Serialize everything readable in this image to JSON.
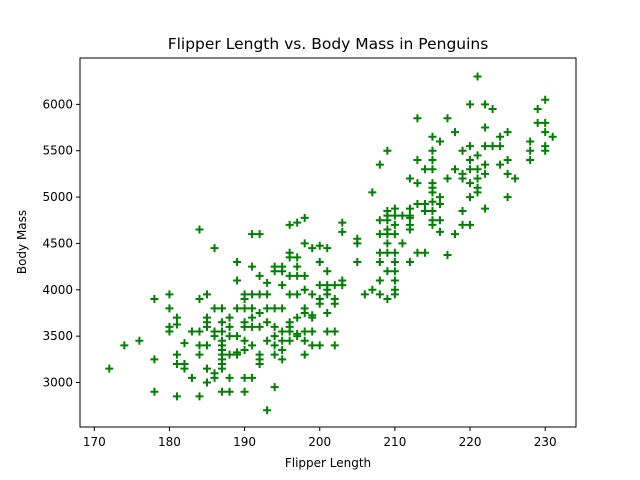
{
  "chart_data": {
    "type": "scatter",
    "title": "Flipper Length vs. Body Mass in Penguins",
    "xlabel": "Flipper Length",
    "ylabel": "Body Mass",
    "xlim": [
      168.1,
      234.1
    ],
    "ylim": [
      2520,
      6500
    ],
    "xticks": [
      170,
      180,
      190,
      200,
      210,
      220,
      230
    ],
    "yticks": [
      3000,
      3500,
      4000,
      4500,
      5000,
      5500,
      6000
    ],
    "grid": false,
    "legend": "none",
    "marker": "plus",
    "color": "#008000",
    "series": [
      {
        "points": [
          [
            172,
            3150
          ],
          [
            174,
            3400
          ],
          [
            176,
            3450
          ],
          [
            178,
            3900
          ],
          [
            178,
            3250
          ],
          [
            178,
            2900
          ],
          [
            180,
            3950
          ],
          [
            180,
            3800
          ],
          [
            180,
            3600
          ],
          [
            180,
            3550
          ],
          [
            181,
            3625
          ],
          [
            181,
            3700
          ],
          [
            181,
            3300
          ],
          [
            181,
            3200
          ],
          [
            181,
            2850
          ],
          [
            182,
            3200
          ],
          [
            182,
            3150
          ],
          [
            182,
            3425
          ],
          [
            183,
            3550
          ],
          [
            183,
            3050
          ],
          [
            184,
            4650
          ],
          [
            184,
            3900
          ],
          [
            184,
            3550
          ],
          [
            184,
            3400
          ],
          [
            184,
            3300
          ],
          [
            184,
            2850
          ],
          [
            185,
            3950
          ],
          [
            185,
            3700
          ],
          [
            185,
            3650
          ],
          [
            185,
            3600
          ],
          [
            185,
            3400
          ],
          [
            185,
            3150
          ],
          [
            185,
            3000
          ],
          [
            186,
            4450
          ],
          [
            186,
            3800
          ],
          [
            186,
            3550
          ],
          [
            186,
            3500
          ],
          [
            186,
            3100
          ],
          [
            186,
            3050
          ],
          [
            187,
            3800
          ],
          [
            187,
            3650
          ],
          [
            187,
            3550
          ],
          [
            187,
            3450
          ],
          [
            187,
            3400
          ],
          [
            187,
            3350
          ],
          [
            187,
            3300
          ],
          [
            187,
            3250
          ],
          [
            187,
            3200
          ],
          [
            187,
            3150
          ],
          [
            187,
            2900
          ],
          [
            188,
            3700
          ],
          [
            188,
            3600
          ],
          [
            188,
            3500
          ],
          [
            188,
            3300
          ],
          [
            188,
            3050
          ],
          [
            188,
            2900
          ],
          [
            189,
            4300
          ],
          [
            189,
            4100
          ],
          [
            189,
            3800
          ],
          [
            189,
            3500
          ],
          [
            189,
            3325
          ],
          [
            189,
            3300
          ],
          [
            190,
            3950
          ],
          [
            190,
            3900
          ],
          [
            190,
            3800
          ],
          [
            190,
            3650
          ],
          [
            190,
            3600
          ],
          [
            190,
            3450
          ],
          [
            190,
            3350
          ],
          [
            190,
            3050
          ],
          [
            190,
            2900
          ],
          [
            191,
            4600
          ],
          [
            191,
            4250
          ],
          [
            191,
            3950
          ],
          [
            191,
            3800
          ],
          [
            191,
            3700
          ],
          [
            191,
            3600
          ],
          [
            191,
            3400
          ],
          [
            191,
            3050
          ],
          [
            192,
            4600
          ],
          [
            192,
            4150
          ],
          [
            192,
            3950
          ],
          [
            192,
            3750
          ],
          [
            192,
            3600
          ],
          [
            192,
            3300
          ],
          [
            192,
            3250
          ],
          [
            192,
            3200
          ],
          [
            193,
            4075
          ],
          [
            193,
            3950
          ],
          [
            193,
            3800
          ],
          [
            193,
            3650
          ],
          [
            193,
            3450
          ],
          [
            193,
            2700
          ],
          [
            194,
            4250
          ],
          [
            194,
            4200
          ],
          [
            194,
            3800
          ],
          [
            194,
            3600
          ],
          [
            194,
            3500
          ],
          [
            194,
            3400
          ],
          [
            194,
            3300
          ],
          [
            194,
            2950
          ],
          [
            195,
            4250
          ],
          [
            195,
            4200
          ],
          [
            195,
            4050
          ],
          [
            195,
            3800
          ],
          [
            195,
            3550
          ],
          [
            195,
            3450
          ],
          [
            195,
            3350
          ],
          [
            195,
            3250
          ],
          [
            196,
            4700
          ],
          [
            196,
            4400
          ],
          [
            196,
            4350
          ],
          [
            196,
            4150
          ],
          [
            196,
            3950
          ],
          [
            196,
            3650
          ],
          [
            196,
            3600
          ],
          [
            196,
            3550
          ],
          [
            196,
            3450
          ],
          [
            197,
            4725
          ],
          [
            197,
            4350
          ],
          [
            197,
            4250
          ],
          [
            197,
            4150
          ],
          [
            197,
            3950
          ],
          [
            197,
            3700
          ],
          [
            197,
            3525
          ],
          [
            197,
            3500
          ],
          [
            198,
            4775
          ],
          [
            198,
            4500
          ],
          [
            198,
            4150
          ],
          [
            198,
            4000
          ],
          [
            198,
            3800
          ],
          [
            198,
            3750
          ],
          [
            198,
            3550
          ],
          [
            198,
            3450
          ],
          [
            198,
            3300
          ],
          [
            199,
            4450
          ],
          [
            199,
            3950
          ],
          [
            199,
            3725
          ],
          [
            199,
            3700
          ],
          [
            199,
            3550
          ],
          [
            199,
            3400
          ],
          [
            200,
            4475
          ],
          [
            200,
            4300
          ],
          [
            200,
            4050
          ],
          [
            200,
            3900
          ],
          [
            200,
            3850
          ],
          [
            200,
            3400
          ],
          [
            201,
            4450
          ],
          [
            201,
            4200
          ],
          [
            201,
            4050
          ],
          [
            201,
            4000
          ],
          [
            201,
            3950
          ],
          [
            201,
            3750
          ],
          [
            201,
            3550
          ],
          [
            202,
            4050
          ],
          [
            202,
            3900
          ],
          [
            202,
            3850
          ],
          [
            202,
            3550
          ],
          [
            202,
            3400
          ],
          [
            203,
            4725
          ],
          [
            203,
            4625
          ],
          [
            203,
            4100
          ],
          [
            203,
            4050
          ],
          [
            205,
            4550
          ],
          [
            205,
            4500
          ],
          [
            205,
            4300
          ],
          [
            206,
            3950
          ],
          [
            207,
            5050
          ],
          [
            207,
            4000
          ],
          [
            208,
            5350
          ],
          [
            208,
            4750
          ],
          [
            208,
            4600
          ],
          [
            208,
            4400
          ],
          [
            208,
            4300
          ],
          [
            208,
            3950
          ],
          [
            208,
            4100
          ],
          [
            209,
            5500
          ],
          [
            209,
            4850
          ],
          [
            209,
            4800
          ],
          [
            209,
            4750
          ],
          [
            209,
            4650
          ],
          [
            209,
            4600
          ],
          [
            209,
            4500
          ],
          [
            209,
            4400
          ],
          [
            209,
            4200
          ],
          [
            209,
            3900
          ],
          [
            210,
            4875
          ],
          [
            210,
            4800
          ],
          [
            210,
            4700
          ],
          [
            210,
            4600
          ],
          [
            210,
            4400
          ],
          [
            210,
            4300
          ],
          [
            210,
            4200
          ],
          [
            210,
            4100
          ],
          [
            210,
            4000
          ],
          [
            210,
            3950
          ],
          [
            211,
            4800
          ],
          [
            211,
            4500
          ],
          [
            212,
            5200
          ],
          [
            212,
            4875
          ],
          [
            212,
            4800
          ],
          [
            212,
            4775
          ],
          [
            212,
            4700
          ],
          [
            212,
            4650
          ],
          [
            212,
            4300
          ],
          [
            213,
            5850
          ],
          [
            213,
            5400
          ],
          [
            213,
            5150
          ],
          [
            213,
            4925
          ],
          [
            213,
            4400
          ],
          [
            214,
            5300
          ],
          [
            214,
            4925
          ],
          [
            214,
            4850
          ],
          [
            214,
            4400
          ],
          [
            215,
            5650
          ],
          [
            215,
            5500
          ],
          [
            215,
            5400
          ],
          [
            215,
            5300
          ],
          [
            215,
            5150
          ],
          [
            215,
            5100
          ],
          [
            215,
            5050
          ],
          [
            215,
            4950
          ],
          [
            215,
            4850
          ],
          [
            215,
            4750
          ],
          [
            215,
            4700
          ],
          [
            216,
            5600
          ],
          [
            216,
            5000
          ],
          [
            216,
            4925
          ],
          [
            216,
            4750
          ],
          [
            216,
            4625
          ],
          [
            217,
            5850
          ],
          [
            217,
            5200
          ],
          [
            217,
            4375
          ],
          [
            218,
            5700
          ],
          [
            218,
            5300
          ],
          [
            218,
            4600
          ],
          [
            219,
            5500
          ],
          [
            219,
            5250
          ],
          [
            219,
            5200
          ],
          [
            219,
            4850
          ],
          [
            219,
            4700
          ],
          [
            220,
            6000
          ],
          [
            220,
            5550
          ],
          [
            220,
            5400
          ],
          [
            220,
            5300
          ],
          [
            220,
            5150
          ],
          [
            220,
            5000
          ],
          [
            220,
            4700
          ],
          [
            221,
            6300
          ],
          [
            221,
            5450
          ],
          [
            221,
            5300
          ],
          [
            221,
            5200
          ],
          [
            221,
            5100
          ],
          [
            221,
            5050
          ],
          [
            222,
            6000
          ],
          [
            222,
            5750
          ],
          [
            222,
            5550
          ],
          [
            222,
            5350
          ],
          [
            222,
            5250
          ],
          [
            222,
            4875
          ],
          [
            223,
            5950
          ],
          [
            223,
            5550
          ],
          [
            224,
            5650
          ],
          [
            224,
            5550
          ],
          [
            224,
            5350
          ],
          [
            225,
            5700
          ],
          [
            225,
            5400
          ],
          [
            225,
            5250
          ],
          [
            225,
            5000
          ],
          [
            226,
            5200
          ],
          [
            228,
            5600
          ],
          [
            228,
            5500
          ],
          [
            228,
            5400
          ],
          [
            229,
            5950
          ],
          [
            229,
            5800
          ],
          [
            230,
            6050
          ],
          [
            230,
            5800
          ],
          [
            230,
            5700
          ],
          [
            230,
            5550
          ],
          [
            230,
            5500
          ],
          [
            231,
            5650
          ]
        ]
      }
    ]
  }
}
